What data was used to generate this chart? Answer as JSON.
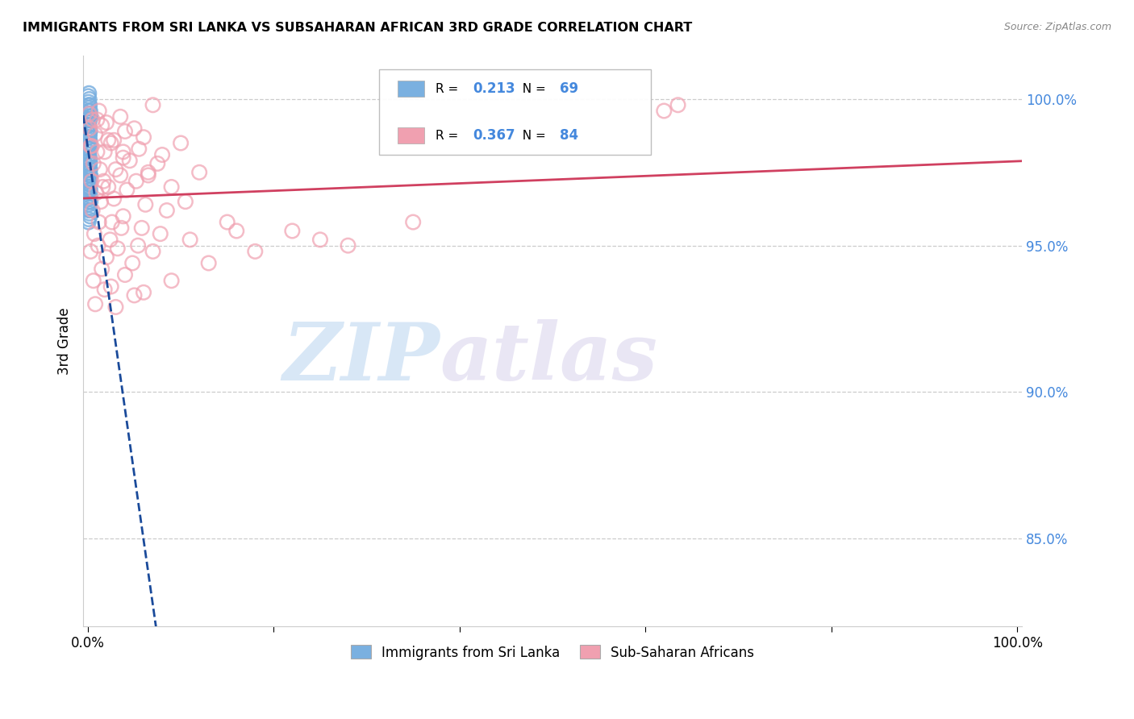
{
  "title": "IMMIGRANTS FROM SRI LANKA VS SUBSAHARAN AFRICAN 3RD GRADE CORRELATION CHART",
  "source": "Source: ZipAtlas.com",
  "ylabel": "3rd Grade",
  "legend_blue_r": "0.213",
  "legend_blue_n": "69",
  "legend_pink_r": "0.367",
  "legend_pink_n": "84",
  "legend_label_blue": "Immigrants from Sri Lanka",
  "legend_label_pink": "Sub-Saharan Africans",
  "blue_color": "#7ab0e0",
  "pink_color": "#f0a0b0",
  "blue_line_color": "#1a4a9a",
  "pink_line_color": "#d04060",
  "blue_scatter_x": [
    0.05,
    0.08,
    0.12,
    0.15,
    0.1,
    0.18,
    0.2,
    0.25,
    0.3,
    0.22,
    0.06,
    0.09,
    0.14,
    0.07,
    0.11,
    0.16,
    0.19,
    0.13,
    0.08,
    0.17,
    0.21,
    0.24,
    0.28,
    0.1,
    0.05,
    0.12,
    0.15,
    0.09,
    0.18,
    0.23,
    0.07,
    0.13,
    0.16,
    0.2,
    0.26,
    0.1,
    0.14,
    0.08,
    0.19,
    0.22,
    0.06,
    0.11,
    0.17,
    0.25,
    0.12,
    0.09,
    0.15,
    0.21,
    0.18,
    0.07,
    0.13,
    0.24,
    0.1,
    0.16,
    0.2,
    0.08,
    0.14,
    0.19,
    0.11,
    0.23,
    0.06,
    0.17,
    0.22,
    0.12,
    0.09,
    0.15,
    0.28,
    0.18,
    0.1
  ],
  "blue_scatter_y": [
    100.1,
    99.9,
    100.2,
    100.0,
    99.7,
    99.5,
    99.8,
    99.6,
    99.4,
    99.3,
    99.1,
    98.9,
    98.7,
    98.5,
    98.3,
    98.8,
    98.6,
    98.4,
    98.2,
    98.0,
    97.8,
    97.6,
    97.4,
    97.2,
    97.0,
    96.8,
    96.6,
    96.4,
    96.2,
    96.0,
    95.8,
    97.5,
    97.3,
    97.1,
    96.9,
    98.1,
    97.9,
    97.7,
    98.3,
    98.5,
    99.2,
    99.0,
    98.8,
    99.4,
    99.6,
    99.8,
    96.5,
    96.3,
    96.1,
    95.9,
    98.7,
    98.9,
    99.1,
    97.8,
    97.6,
    99.3,
    97.4,
    97.2,
    97.0,
    96.7,
    98.0,
    96.8,
    97.9,
    97.1,
    97.3,
    96.9,
    96.5,
    96.2,
    97.7
  ],
  "pink_scatter_x": [
    0.15,
    0.5,
    1.2,
    2.0,
    3.5,
    5.0,
    7.0,
    0.8,
    1.5,
    2.8,
    4.0,
    6.0,
    0.3,
    1.0,
    2.5,
    3.8,
    5.5,
    8.0,
    0.6,
    1.8,
    3.0,
    4.5,
    6.5,
    10.0,
    0.4,
    1.3,
    2.2,
    3.5,
    5.2,
    7.5,
    0.9,
    1.6,
    2.8,
    4.2,
    6.2,
    9.0,
    0.5,
    1.4,
    2.6,
    3.8,
    5.8,
    8.5,
    0.7,
    1.2,
    2.4,
    3.6,
    5.4,
    7.8,
    12.0,
    0.3,
    1.1,
    2.0,
    3.2,
    4.8,
    7.0,
    11.0,
    15.0,
    0.6,
    1.5,
    2.5,
    4.0,
    6.0,
    9.0,
    13.0,
    18.0,
    0.8,
    1.8,
    3.0,
    5.0,
    22.0,
    28.0,
    35.0,
    0.2,
    1.0,
    2.2,
    3.8,
    6.5,
    10.5,
    16.0,
    25.0,
    62.0,
    63.5,
    0.4,
    1.7
  ],
  "pink_scatter_y": [
    99.5,
    99.3,
    99.6,
    99.2,
    99.4,
    99.0,
    99.8,
    98.8,
    99.1,
    98.6,
    98.9,
    98.7,
    98.4,
    98.2,
    98.5,
    98.0,
    98.3,
    98.1,
    97.8,
    98.2,
    97.6,
    97.9,
    97.4,
    98.5,
    97.2,
    97.6,
    97.0,
    97.4,
    97.2,
    97.8,
    96.8,
    97.0,
    96.6,
    96.9,
    96.4,
    97.0,
    96.2,
    96.5,
    95.8,
    96.0,
    95.6,
    96.2,
    95.4,
    95.8,
    95.2,
    95.6,
    95.0,
    95.4,
    97.5,
    94.8,
    95.0,
    94.6,
    94.9,
    94.4,
    94.8,
    95.2,
    95.8,
    93.8,
    94.2,
    93.6,
    94.0,
    93.4,
    93.8,
    94.4,
    94.8,
    93.0,
    93.5,
    92.9,
    93.3,
    95.5,
    95.0,
    95.8,
    99.0,
    99.3,
    98.6,
    98.2,
    97.5,
    96.5,
    95.5,
    95.2,
    99.6,
    99.8,
    98.4,
    97.2
  ],
  "watermark_zip": "ZIP",
  "watermark_atlas": "atlas",
  "ylim_min": 82.0,
  "ylim_max": 101.5,
  "xlim_min": -0.5,
  "xlim_max": 100.5,
  "y_tick_vals": [
    85,
    90,
    95,
    100
  ],
  "y_tick_labels": [
    "85.0%",
    "90.0%",
    "95.0%",
    "100.0%"
  ],
  "x_tick_vals": [
    0,
    20,
    40,
    60,
    80,
    100
  ],
  "x_tick_labels_left": "0.0%",
  "x_tick_labels_right": "100.0%"
}
